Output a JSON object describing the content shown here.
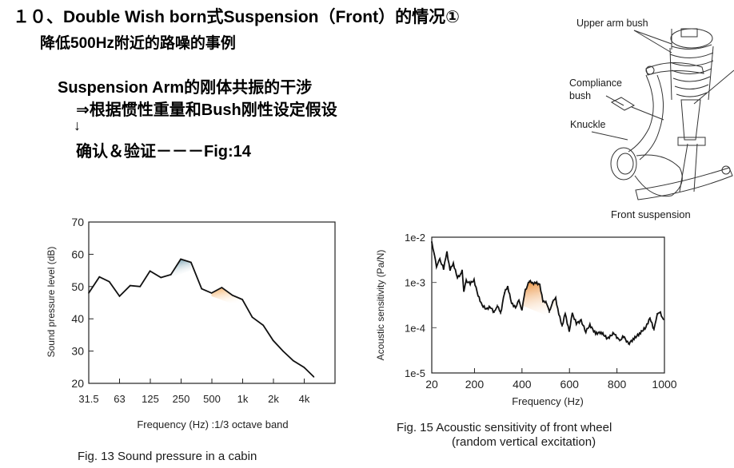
{
  "heading": {
    "title": "１０、Double Wish born式Suspension（Front）的情况①",
    "subtitle": "降低500Hz附近的路噪的事例"
  },
  "notes": {
    "line1": "Suspension Arm的刚体共振的干涉",
    "line2": "⇒根据惯性重量和Bush刚性设定假设",
    "line3": "↓",
    "line4": "确认＆验证－－－Fig:14"
  },
  "suspension_figure": {
    "labels": {
      "upper_arm_bush": "Upper arm bush",
      "compliance_bush_1": "Compliance",
      "compliance_bush_2": "bush",
      "knuckle": "Knuckle"
    },
    "caption": "Front suspension"
  },
  "chart_data": [
    {
      "type": "line",
      "title": "",
      "caption": "Fig. 13   Sound pressure in a cabin",
      "xlabel": "Frequency (Hz) :1/3 octave band",
      "ylabel": "Sound pressure level (dB)",
      "x_scale": "log2 (1/3 octave bands)",
      "x_ticks": [
        "31.5",
        "63",
        "125",
        "250",
        "500",
        "1k",
        "2k",
        "4k"
      ],
      "y_ticks": [
        "70",
        "60",
        "50",
        "40",
        "30",
        "20"
      ],
      "ylim": [
        20,
        70
      ],
      "grid": false,
      "x": [
        31.5,
        40,
        50,
        63,
        80,
        100,
        125,
        160,
        200,
        250,
        315,
        400,
        500,
        630,
        800,
        1000,
        1250,
        1600,
        2000,
        2500,
        3150,
        4000,
        5000
      ],
      "values": [
        48,
        53,
        51.5,
        47,
        50.3,
        50,
        54.8,
        52.8,
        53.7,
        58.5,
        57.5,
        49.3,
        48,
        49.7,
        47.3,
        46,
        40.5,
        38,
        33.3,
        30,
        27,
        25,
        22
      ],
      "highlights": [
        {
          "name": "peak-250Hz",
          "from": 200,
          "to": 315,
          "color": "#5b8fa3"
        },
        {
          "name": "band-500-1kHz",
          "from": 500,
          "to": 1000,
          "color": "#f0a050"
        }
      ]
    },
    {
      "type": "line",
      "title": "",
      "caption_line1": "Fig. 15   Acoustic sensitivity of front wheel",
      "caption_line2": "(random vertical excitation)",
      "xlabel": "Frequency (Hz)",
      "ylabel": "Acoustic sensitivity (Pa/N)",
      "x_ticks": [
        "20",
        "200",
        "400",
        "600",
        "800",
        "1000"
      ],
      "x_tick_values": [
        20,
        200,
        400,
        600,
        800,
        1000
      ],
      "y_ticks": [
        "1e-2",
        "1e-3",
        "1e-4",
        "1e-5"
      ],
      "y_tick_values": [
        -2,
        -3,
        -4,
        -5
      ],
      "y_scale": "log10",
      "xlim": [
        20,
        1000
      ],
      "ylim_log10": [
        -5,
        -2
      ],
      "grid": false,
      "x": [
        20,
        30,
        40,
        54,
        70,
        84,
        97,
        111,
        128,
        141,
        148,
        155,
        165,
        182,
        198,
        215,
        232,
        249,
        266,
        283,
        296,
        310,
        326,
        340,
        356,
        373,
        387,
        400,
        414,
        431,
        444,
        458,
        475,
        488,
        501,
        515,
        528,
        542,
        555,
        569,
        582,
        599,
        612,
        629,
        649,
        669,
        686,
        710,
        733,
        760,
        787,
        811,
        828,
        848,
        872,
        895,
        922,
        939,
        956,
        969,
        983,
        996
      ],
      "log10_values": [
        -2.1,
        -2.37,
        -2.64,
        -2.5,
        -2.69,
        -2.34,
        -2.72,
        -2.58,
        -2.9,
        -2.81,
        -2.74,
        -3.18,
        -2.97,
        -3.02,
        -2.95,
        -3.29,
        -3.5,
        -3.59,
        -3.54,
        -3.66,
        -3.5,
        -3.69,
        -3.23,
        -3.09,
        -3.46,
        -3.55,
        -3.41,
        -3.59,
        -3.18,
        -2.97,
        -3.02,
        -3.01,
        -3.04,
        -3.43,
        -3.41,
        -3.66,
        -3.43,
        -3.36,
        -3.69,
        -3.96,
        -3.69,
        -4.08,
        -3.69,
        -3.9,
        -3.85,
        -4.08,
        -3.94,
        -4.13,
        -4.1,
        -4.24,
        -4.12,
        -4.29,
        -4.19,
        -4.36,
        -4.24,
        -4.13,
        -3.99,
        -3.78,
        -4.05,
        -3.69,
        -3.68,
        -3.82
      ],
      "highlights": [
        {
          "name": "band-400-560Hz",
          "from": 387,
          "to": 560,
          "color": "#e8892a"
        }
      ]
    }
  ]
}
